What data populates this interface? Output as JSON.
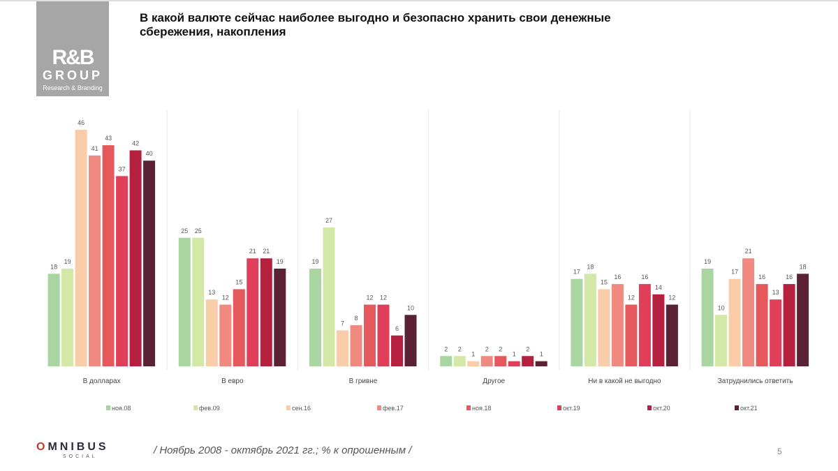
{
  "logo": {
    "line1": "R&B",
    "line2": "GROUP",
    "line3": "Research & Branding"
  },
  "title": "В какой валюте сейчас наиболее выгодно и безопасно хранить свои денежные сбережения, накопления",
  "footer": {
    "brand": "MNIBUS",
    "brand_o": "O",
    "brand_sub": "SOCIAL",
    "note": "/ Ноябрь 2008 - октябрь 2021 гг.; % к опрошенным /",
    "page": "5"
  },
  "chart_data": {
    "type": "bar",
    "title": "В какой валюте сейчас наиболее выгодно и безопасно хранить свои денежные сбережения, накопления",
    "ylabel": "% к опрошенным",
    "ylim": [
      0,
      46
    ],
    "grid": false,
    "legend": "bottom",
    "categories": [
      "В долларах",
      "В евро",
      "В гривне",
      "Другое",
      "Ни в какой не выгодно",
      "Затруднились ответить"
    ],
    "series": [
      {
        "name": "ноя.08",
        "color": "#a9d6a0",
        "values": [
          18,
          25,
          19,
          2,
          17,
          19
        ]
      },
      {
        "name": "фев.09",
        "color": "#d3e8a6",
        "values": [
          19,
          25,
          27,
          2,
          18,
          10
        ]
      },
      {
        "name": "сен.16",
        "color": "#f9ccaa",
        "values": [
          46,
          13,
          7,
          1,
          15,
          17
        ]
      },
      {
        "name": "фев.17",
        "color": "#f08a80",
        "values": [
          41,
          12,
          8,
          2,
          16,
          21
        ]
      },
      {
        "name": "ноя.18",
        "color": "#e5585c",
        "values": [
          43,
          15,
          12,
          2,
          12,
          16
        ]
      },
      {
        "name": "окт.19",
        "color": "#e03f5a",
        "values": [
          37,
          21,
          12,
          1,
          16,
          13
        ]
      },
      {
        "name": "окт.20",
        "color": "#b5203e",
        "values": [
          42,
          21,
          6,
          2,
          14,
          16
        ]
      },
      {
        "name": "окт.21",
        "color": "#5a2233",
        "values": [
          40,
          19,
          10,
          1,
          12,
          18
        ]
      }
    ]
  }
}
